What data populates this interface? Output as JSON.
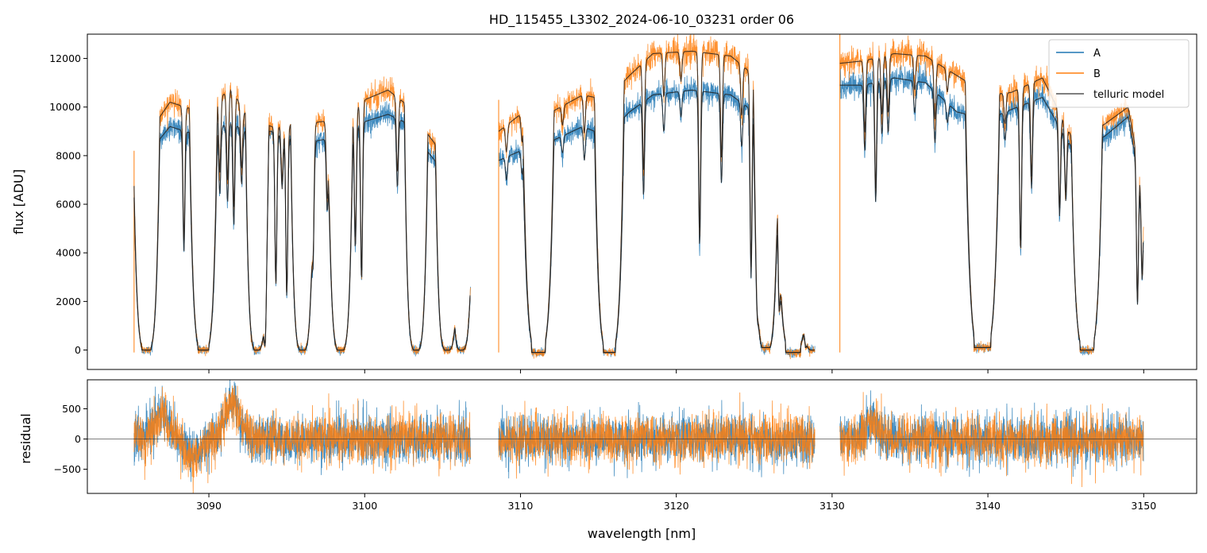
{
  "chart_data": [
    {
      "type": "line",
      "title": "HD_115455_L3302_2024-06-10_03231  order 06",
      "xlabel": "",
      "ylabel": "flux [ADU]",
      "xlim": [
        3082.2,
        3153.4
      ],
      "ylim": [
        -800,
        13000
      ],
      "xticks": [
        3090,
        3100,
        3110,
        3120,
        3130,
        3140,
        3150
      ],
      "yticks": [
        0,
        2000,
        4000,
        6000,
        8000,
        10000,
        12000
      ],
      "ytick_labels": [
        "0",
        "2000",
        "4000",
        "6000",
        "8000",
        "10000",
        "12000"
      ],
      "grid": false,
      "legend": "top-right",
      "colors": {
        "A": "#1f77b4",
        "B": "#ff7f0e",
        "telluric model": "#444444"
      },
      "series": [
        {
          "name": "A"
        },
        {
          "name": "B"
        },
        {
          "name": "telluric model"
        }
      ],
      "segments_nm": [
        [
          3085.2,
          3106.8
        ],
        [
          3108.6,
          3128.9
        ],
        [
          3130.5,
          3150.0
        ]
      ],
      "continuum_A": [
        [
          3085.2,
          8000
        ],
        [
          3086.0,
          8000
        ],
        [
          3087.5,
          9200
        ],
        [
          3089.5,
          8800
        ],
        [
          3091.5,
          9400
        ],
        [
          3092.2,
          9000
        ],
        [
          3094.0,
          9000
        ],
        [
          3096.0,
          8500
        ],
        [
          3098.5,
          8800
        ],
        [
          3100.0,
          9400
        ],
        [
          3101.5,
          9700
        ],
        [
          3102.5,
          9400
        ],
        [
          3104.5,
          7800
        ],
        [
          3106.8,
          3800
        ],
        [
          3108.6,
          7800
        ],
        [
          3110.0,
          8200
        ],
        [
          3112.0,
          8600
        ],
        [
          3114.0,
          9200
        ],
        [
          3115.5,
          8800
        ],
        [
          3117.0,
          9800
        ],
        [
          3118.5,
          10500
        ],
        [
          3121.0,
          10700
        ],
        [
          3123.5,
          10500
        ],
        [
          3125.0,
          9800
        ],
        [
          3126.0,
          7900
        ],
        [
          3127.5,
          6500
        ],
        [
          3128.9,
          1200
        ],
        [
          3130.5,
          10900
        ],
        [
          3132.0,
          10900
        ],
        [
          3134.0,
          11200
        ],
        [
          3136.0,
          11000
        ],
        [
          3138.0,
          9800
        ],
        [
          3140.0,
          9500
        ],
        [
          3141.5,
          9900
        ],
        [
          3143.5,
          10400
        ],
        [
          3145.5,
          8200
        ],
        [
          3147.5,
          8800
        ],
        [
          3149.0,
          9600
        ],
        [
          3150.0,
          6000
        ]
      ],
      "continuum_B": [
        [
          3085.2,
          8600
        ],
        [
          3086.0,
          8800
        ],
        [
          3087.5,
          10200
        ],
        [
          3089.5,
          9800
        ],
        [
          3091.5,
          10800
        ],
        [
          3092.2,
          9800
        ],
        [
          3094.0,
          9200
        ],
        [
          3096.0,
          9300
        ],
        [
          3098.5,
          9500
        ],
        [
          3100.0,
          10300
        ],
        [
          3101.5,
          10700
        ],
        [
          3102.5,
          10200
        ],
        [
          3104.5,
          8500
        ],
        [
          3106.8,
          3900
        ],
        [
          3108.6,
          9000
        ],
        [
          3110.0,
          9700
        ],
        [
          3112.0,
          9800
        ],
        [
          3114.0,
          10500
        ],
        [
          3115.5,
          10300
        ],
        [
          3117.0,
          11300
        ],
        [
          3118.5,
          12200
        ],
        [
          3121.0,
          12300
        ],
        [
          3123.5,
          12100
        ],
        [
          3125.0,
          11300
        ],
        [
          3126.0,
          9300
        ],
        [
          3127.5,
          7000
        ],
        [
          3128.9,
          1300
        ],
        [
          3130.5,
          11800
        ],
        [
          3132.0,
          11900
        ],
        [
          3134.0,
          12200
        ],
        [
          3136.0,
          12100
        ],
        [
          3138.0,
          11300
        ],
        [
          3140.0,
          10500
        ],
        [
          3141.5,
          10600
        ],
        [
          3143.5,
          11200
        ],
        [
          3145.5,
          8600
        ],
        [
          3147.5,
          9300
        ],
        [
          3149.0,
          10000
        ],
        [
          3150.0,
          6500
        ]
      ],
      "saturated_bands_nm": [
        [
          3085.7,
          3086.3,
          0
        ],
        [
          3089.3,
          3090.0,
          0
        ],
        [
          3092.9,
          3093.3,
          0
        ],
        [
          3095.8,
          3096.2,
          0
        ],
        [
          3098.2,
          3098.7,
          0
        ],
        [
          3103.1,
          3103.5,
          0
        ],
        [
          3105.1,
          3105.5,
          0
        ],
        [
          3106.1,
          3106.3,
          0
        ],
        [
          3110.7,
          3111.6,
          -100
        ],
        [
          3115.3,
          3116.1,
          -100
        ],
        [
          3125.5,
          3126.0,
          100
        ],
        [
          3127.0,
          3128.0,
          -100
        ],
        [
          3128.6,
          3128.9,
          0
        ],
        [
          3139.1,
          3140.2,
          100
        ],
        [
          3145.9,
          3146.8,
          0
        ]
      ],
      "absorption_lines_nm": [
        [
          3088.4,
          0.55
        ],
        [
          3090.7,
          0.3
        ],
        [
          3091.2,
          0.35
        ],
        [
          3091.6,
          0.45
        ],
        [
          3092.1,
          0.25
        ],
        [
          3093.6,
          0.92
        ],
        [
          3094.3,
          0.7
        ],
        [
          3094.7,
          0.25
        ],
        [
          3095.0,
          0.75
        ],
        [
          3096.7,
          0.45
        ],
        [
          3097.6,
          0.35
        ],
        [
          3099.4,
          0.55
        ],
        [
          3099.8,
          0.7
        ],
        [
          3102.1,
          0.3
        ],
        [
          3107.1,
          0.15
        ],
        [
          3109.1,
          0.12
        ],
        [
          3110.1,
          0.12
        ],
        [
          3112.7,
          0.08
        ],
        [
          3114.1,
          0.15
        ],
        [
          3117.9,
          0.38
        ],
        [
          3119.2,
          0.15
        ],
        [
          3120.3,
          0.1
        ],
        [
          3121.5,
          0.6
        ],
        [
          3122.9,
          0.35
        ],
        [
          3124.2,
          0.18
        ],
        [
          3124.8,
          0.7
        ],
        [
          3125.2,
          0.4
        ],
        [
          3126.6,
          0.6
        ],
        [
          3127.8,
          0.4
        ],
        [
          3128.3,
          0.85
        ],
        [
          3132.1,
          0.25
        ],
        [
          3132.8,
          0.45
        ],
        [
          3133.2,
          0.2
        ],
        [
          3133.6,
          0.2
        ],
        [
          3135.3,
          0.12
        ],
        [
          3136.6,
          0.2
        ],
        [
          3137.4,
          0.08
        ],
        [
          3141.1,
          0.12
        ],
        [
          3142.1,
          0.6
        ],
        [
          3142.8,
          0.35
        ],
        [
          3144.6,
          0.4
        ],
        [
          3145.0,
          0.3
        ],
        [
          3149.6,
          0.75
        ],
        [
          3149.9,
          0.55
        ]
      ],
      "noise_rms_ADU": 250
    },
    {
      "type": "line",
      "title": "",
      "xlabel": "wavelength [nm]",
      "ylabel": "residual",
      "xlim": [
        3082.2,
        3153.4
      ],
      "ylim": [
        -900,
        980
      ],
      "xticks": [
        3090,
        3100,
        3110,
        3120,
        3130,
        3140,
        3150
      ],
      "xtick_labels": [
        "3090",
        "3100",
        "3110",
        "3120",
        "3130",
        "3140",
        "3150"
      ],
      "yticks": [
        -500,
        0,
        500
      ],
      "ytick_labels": [
        "−500",
        "0",
        "500"
      ],
      "grid": false,
      "zero_line": true,
      "colors": {
        "A": "#1f77b4",
        "B": "#ff7f0e",
        "zero": "#333333"
      },
      "series": [
        {
          "name": "A"
        },
        {
          "name": "B"
        }
      ],
      "segments_nm": [
        [
          3085.2,
          3106.8
        ],
        [
          3108.6,
          3128.9
        ],
        [
          3130.5,
          3150.0
        ]
      ],
      "noise_rms": 200,
      "excursions_nm": [
        [
          3087.0,
          400
        ],
        [
          3089.0,
          -300
        ],
        [
          3091.5,
          600
        ],
        [
          3132.5,
          250
        ]
      ]
    }
  ],
  "legend": {
    "entries": [
      {
        "label": "A",
        "color": "#1f77b4"
      },
      {
        "label": "B",
        "color": "#ff7f0e"
      },
      {
        "label": "telluric model",
        "color": "#555555"
      }
    ]
  }
}
